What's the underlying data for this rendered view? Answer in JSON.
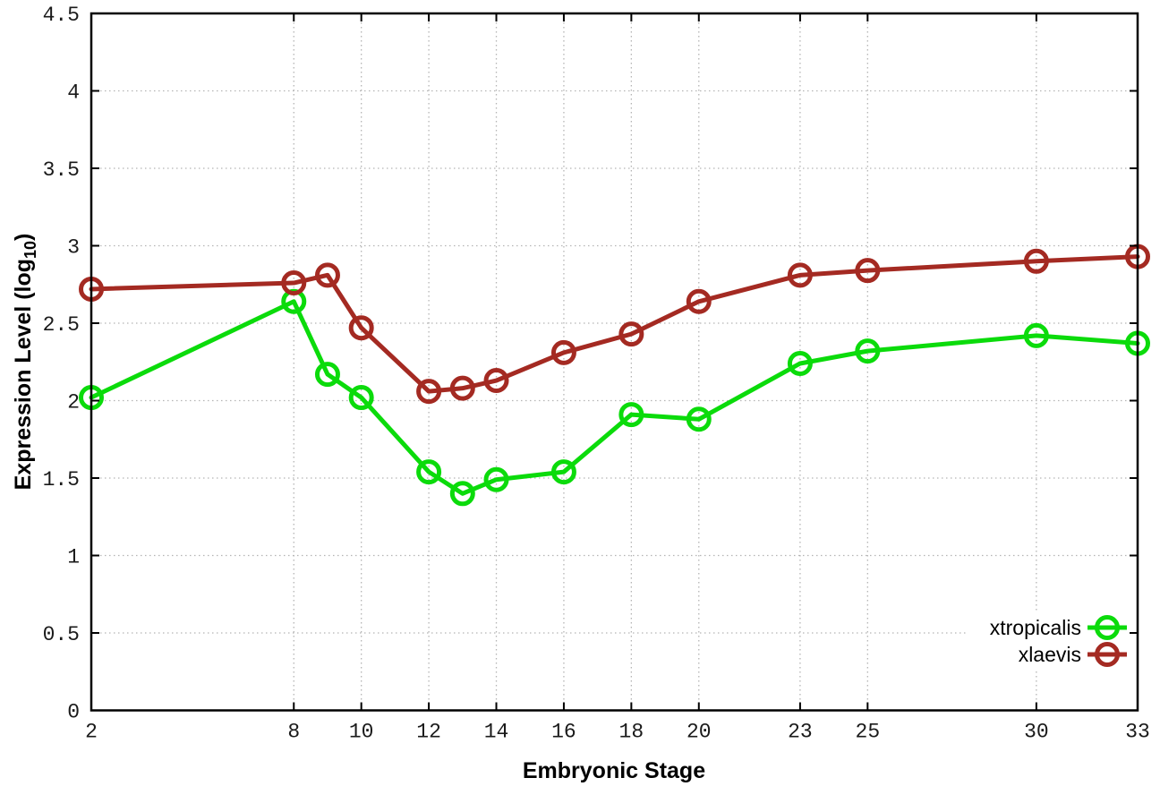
{
  "chart_data": {
    "type": "line",
    "title": "",
    "xlabel": "Embryonic Stage",
    "ylabel": "Expression Level (log10)",
    "ylabel_parts": {
      "main": "Expression Level (log",
      "sub": "10",
      "close": ")"
    },
    "x": [
      2,
      8,
      9,
      10,
      12,
      13,
      14,
      16,
      18,
      20,
      23,
      25,
      30,
      33
    ],
    "series": [
      {
        "name": "xtropicalis",
        "color": "#0bdb0b",
        "values": [
          2.02,
          2.64,
          2.17,
          2.02,
          1.54,
          1.4,
          1.49,
          1.54,
          1.91,
          1.88,
          2.24,
          2.32,
          2.42,
          2.37
        ]
      },
      {
        "name": "xlaevis",
        "color": "#a42a22",
        "values": [
          2.72,
          2.76,
          2.81,
          2.47,
          2.06,
          2.08,
          2.13,
          2.31,
          2.43,
          2.64,
          2.81,
          2.84,
          2.9,
          2.93
        ]
      }
    ],
    "xlim": [
      2,
      33
    ],
    "ylim": [
      0,
      4.5
    ],
    "x_ticks": {
      "values": [
        2,
        8,
        10,
        12,
        14,
        16,
        18,
        20,
        23,
        25,
        30,
        33
      ],
      "labels": [
        "2",
        "8",
        "10",
        "12",
        "14",
        "16",
        "18",
        "20",
        "23",
        "25",
        "30",
        "33"
      ]
    },
    "y_ticks": {
      "values": [
        0,
        0.5,
        1,
        1.5,
        2,
        2.5,
        3,
        3.5,
        4,
        4.5
      ],
      "labels": [
        "0",
        "0.5",
        "1",
        "1.5",
        "2",
        "2.5",
        "3",
        "3.5",
        "4",
        "4.5"
      ]
    },
    "grid": true,
    "grid_color": "#b4b4b4",
    "border_color": "#000000",
    "legend": {
      "position": "bottom-right",
      "entries": [
        "xtropicalis",
        "xlaevis"
      ]
    }
  }
}
